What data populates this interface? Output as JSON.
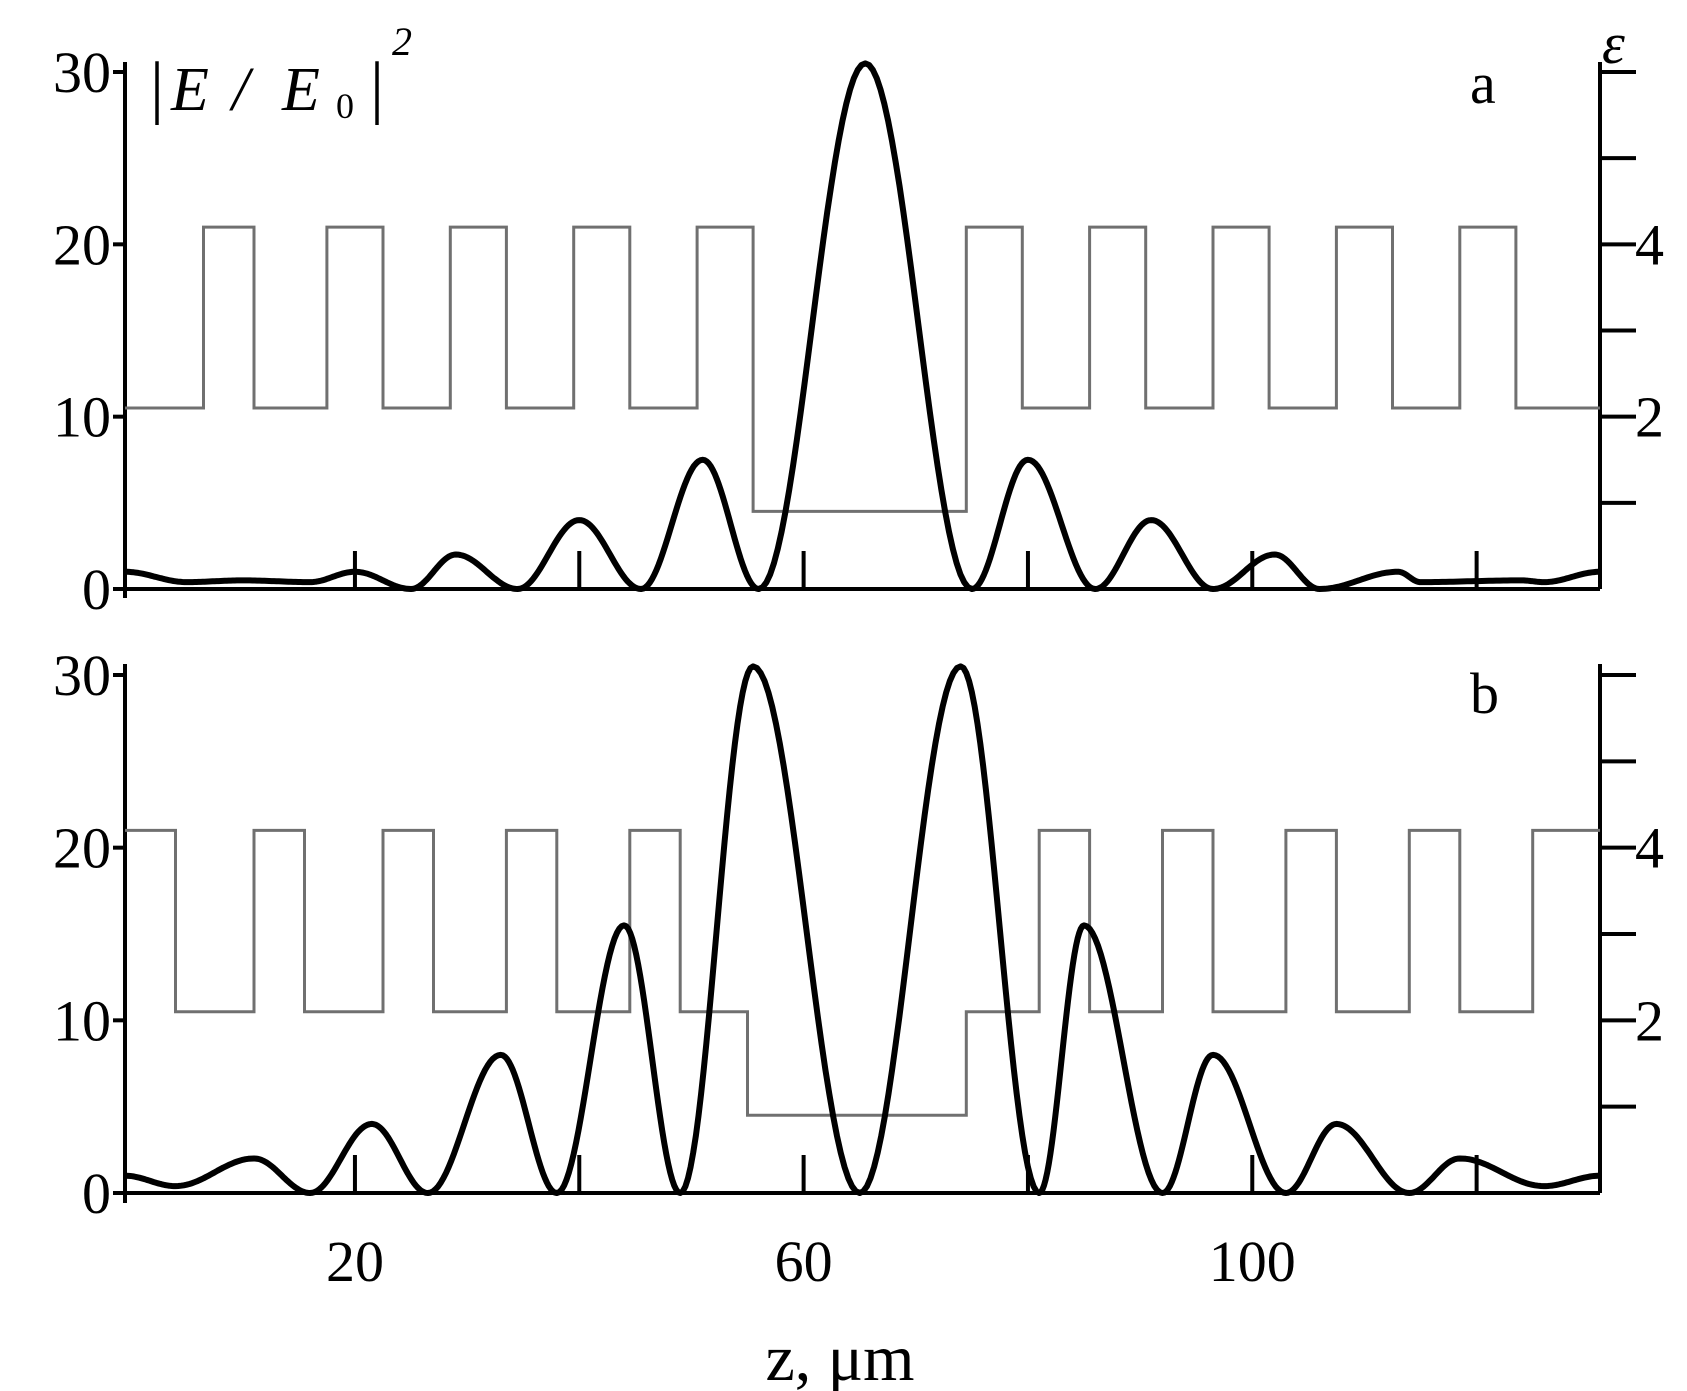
{
  "chart_data": [
    {
      "type": "line",
      "panel_label": "a",
      "left_axis_label": "|E / E0|²",
      "left_axis_label_parts": {
        "bar_left": "|",
        "E": "E",
        "slash": "/",
        "E0_base": "E",
        "E0_sub": "0",
        "bar_right": "|",
        "exp": "2"
      },
      "right_axis_label": "ε",
      "x_range": [
        -0.5,
        131
      ],
      "y_left_range": [
        0,
        31
      ],
      "y_right_range": [
        0,
        6.2
      ],
      "y_left_ticks": [
        "0",
        "10",
        "20",
        "30"
      ],
      "y_left_tick_values": [
        0,
        10,
        20,
        30
      ],
      "y_right_ticks": [
        "2",
        "4"
      ],
      "y_right_tick_values": [
        2,
        4
      ],
      "y_right_minor_ticks": [
        1,
        3,
        5,
        6
      ],
      "x_tick_values": [
        20,
        40,
        60,
        80,
        100,
        120
      ],
      "field_peak_positions": [
        -0.5,
        10,
        20,
        29,
        40,
        51,
        65.5,
        80,
        91,
        102,
        113,
        124,
        131
      ],
      "field_peak_values": [
        1,
        0.5,
        1,
        2,
        4,
        7.5,
        30.5,
        7.5,
        4,
        2,
        1,
        0.5,
        1
      ],
      "field_zero_positions": [
        5,
        16,
        25,
        34.5,
        45.5,
        56,
        75,
        86,
        96.5,
        106,
        115,
        126
      ],
      "field_zero_values": [
        0.4,
        0.4,
        0,
        0,
        0,
        0,
        0,
        0,
        0,
        0,
        0.4,
        0.4
      ],
      "epsilon_profile": {
        "z": [
          -0.5,
          6.5,
          11,
          17.5,
          22.5,
          28.5,
          33.5,
          39.5,
          44.5,
          50.5,
          55.5,
          74.5,
          79.5,
          85.5,
          90.5,
          96.5,
          101.5,
          107.5,
          112.5,
          118.5,
          123.5,
          131
        ],
        "eps": [
          2.1,
          4.2,
          2.1,
          4.2,
          2.1,
          4.2,
          2.1,
          4.2,
          2.1,
          4.2,
          0.9,
          4.2,
          2.1,
          4.2,
          2.1,
          4.2,
          2.1,
          4.2,
          2.1,
          4.2,
          2.1
        ]
      }
    },
    {
      "type": "line",
      "panel_label": "b",
      "xlabel": "z, μm",
      "x_range": [
        -0.5,
        131
      ],
      "y_left_range": [
        0,
        31
      ],
      "y_right_range": [
        0,
        6.2
      ],
      "x_ticks": [
        "20",
        "60",
        "100"
      ],
      "x_tick_label_values": [
        20,
        60,
        100
      ],
      "x_tick_values": [
        20,
        40,
        60,
        80,
        100,
        120
      ],
      "y_left_ticks": [
        "0",
        "10",
        "20",
        "30"
      ],
      "y_left_tick_values": [
        0,
        10,
        20,
        30
      ],
      "y_right_ticks": [
        "2",
        "4"
      ],
      "y_right_tick_values": [
        2,
        4
      ],
      "y_right_minor_ticks": [
        1,
        3,
        5,
        6
      ],
      "field_peak_positions": [
        -0.5,
        11,
        21.5,
        33,
        44,
        55.5,
        74,
        85,
        96.5,
        107.5,
        118.5,
        131
      ],
      "field_peak_values": [
        1,
        2,
        4,
        8,
        15.5,
        30.5,
        30.5,
        15.5,
        8,
        4,
        2,
        1
      ],
      "field_zero_positions": [
        4,
        16,
        26.5,
        38,
        49,
        65,
        81,
        92,
        103,
        114,
        126
      ],
      "field_zero_values": [
        0.4,
        0,
        0,
        0,
        0,
        0,
        0,
        0,
        0,
        0,
        0.4
      ],
      "epsilon_profile": {
        "z": [
          -0.5,
          4,
          11,
          15.5,
          22.5,
          27,
          33.5,
          38,
          44.5,
          49,
          55,
          74.5,
          81,
          85.5,
          92,
          96.5,
          103,
          107.5,
          114,
          118.5,
          125,
          131
        ],
        "eps": [
          4.2,
          2.1,
          4.2,
          2.1,
          4.2,
          2.1,
          4.2,
          2.1,
          4.2,
          2.1,
          0.9,
          2.1,
          4.2,
          2.1,
          4.2,
          2.1,
          4.2,
          2.1,
          4.2,
          2.1,
          4.2
        ]
      }
    }
  ]
}
